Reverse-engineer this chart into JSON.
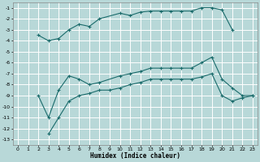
{
  "xlabel": "Humidex (Indice chaleur)",
  "ylabel": "",
  "background_color": "#b8d8d8",
  "grid_color": "#e8f4f4",
  "line_color": "#1a6b6b",
  "xlim": [
    -0.5,
    23.5
  ],
  "ylim": [
    -13.5,
    -0.5
  ],
  "line1_x": [
    2,
    3,
    4,
    5,
    6,
    7,
    8,
    10,
    11,
    12,
    13,
    14,
    15,
    16,
    17,
    18,
    19,
    20,
    21
  ],
  "line1_y": [
    -3.5,
    -4.0,
    -3.8,
    -3.0,
    -2.5,
    -2.7,
    -2.0,
    -1.5,
    -1.7,
    -1.4,
    -1.3,
    -1.3,
    -1.3,
    -1.3,
    -1.3,
    -1.0,
    -1.0,
    -1.2,
    -3.0
  ],
  "line2_x": [
    2,
    3,
    4,
    5,
    6,
    7,
    8,
    10,
    11,
    12,
    13,
    14,
    15,
    16,
    17,
    18,
    19,
    20,
    21,
    22,
    23
  ],
  "line2_y": [
    -9.0,
    -11.0,
    -8.5,
    -7.2,
    -7.5,
    -8.0,
    -7.8,
    -7.2,
    -7.0,
    -6.8,
    -6.5,
    -6.5,
    -6.5,
    -6.5,
    -6.5,
    -6.0,
    -5.5,
    -7.5,
    -8.3,
    -9.0,
    -9.0
  ],
  "line3_x": [
    3,
    4,
    5,
    6,
    7,
    8,
    9,
    10,
    11,
    12,
    13,
    14,
    15,
    16,
    17,
    18,
    19,
    20,
    21,
    22,
    23
  ],
  "line3_y": [
    -12.5,
    -11.0,
    -9.5,
    -9.0,
    -8.8,
    -8.5,
    -8.5,
    -8.3,
    -8.0,
    -7.8,
    -7.5,
    -7.5,
    -7.5,
    -7.5,
    -7.5,
    -7.3,
    -7.0,
    -9.0,
    -9.5,
    -9.2,
    -9.0
  ],
  "yticks": [
    -1,
    -2,
    -3,
    -4,
    -5,
    -6,
    -7,
    -8,
    -9,
    -10,
    -11,
    -12,
    -13
  ],
  "xticks": [
    0,
    1,
    2,
    3,
    4,
    5,
    6,
    7,
    8,
    9,
    10,
    11,
    12,
    13,
    14,
    15,
    16,
    17,
    18,
    19,
    20,
    21,
    22,
    23
  ]
}
